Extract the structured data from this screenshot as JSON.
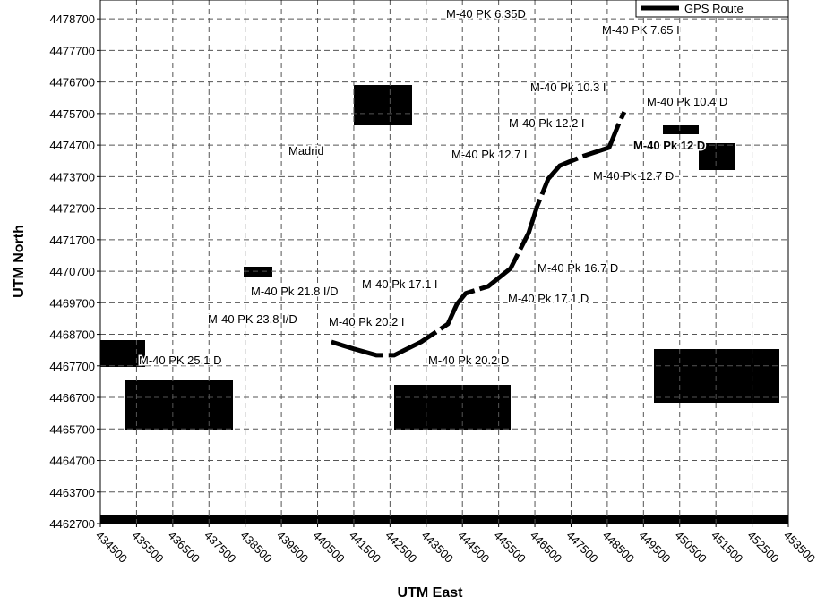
{
  "chart_data": {
    "type": "line",
    "xlabel": "UTM East",
    "ylabel": "UTM North",
    "xlim": [
      434500,
      453500
    ],
    "ylim": [
      4462700,
      4479300
    ],
    "xticks": [
      434500,
      435500,
      436500,
      437500,
      438500,
      439500,
      440500,
      441500,
      442500,
      443500,
      444500,
      445500,
      446500,
      447500,
      448500,
      449500,
      450500,
      451500,
      452500,
      453500
    ],
    "yticks": [
      4462700,
      4463700,
      4464700,
      4465700,
      4466700,
      4467700,
      4468700,
      4469700,
      4470700,
      4471700,
      4472700,
      4473700,
      4474700,
      4475700,
      4476700,
      4477700,
      4478700
    ],
    "grid": true,
    "legend": "upper right",
    "series": [
      {
        "name": "GPS Route",
        "color": "#000000",
        "x": [
          440880,
          441500,
          442120,
          442620,
          443360,
          444100,
          444350,
          444590,
          445210,
          445830,
          446330,
          446570,
          446870,
          447190,
          447810,
          448550,
          448800,
          448970
        ],
        "values": [
          4468460,
          4468240,
          4468040,
          4468040,
          4468460,
          4469030,
          4469660,
          4470000,
          4470220,
          4470790,
          4471920,
          4472780,
          4473630,
          4474050,
          4474340,
          4474620,
          4475330,
          4475750
        ]
      }
    ],
    "annotations": [
      "M-40 PK 6.35D",
      "M-40 PK 7.65 I",
      "M-40 Pk 10.3 I",
      "M-40 Pk 10.4 D",
      "M-40 Pk 12.2 I",
      "M-40 Pk 12 D",
      "M-40 Pk 12.7 I",
      "M-40 Pk 12.7 D",
      "M-40 Pk 16.7 D",
      "M-40 Pk 21.8 I/D",
      "M-40 Pk 17.1 I",
      "M-40 Pk 17.1 D",
      "M-40 PK 23.8 I/D",
      "M-40 Pk 20.2 I",
      "M-40 PK 25.1 D",
      "M-40 Pk 20.2 D",
      "Madrid"
    ]
  }
}
